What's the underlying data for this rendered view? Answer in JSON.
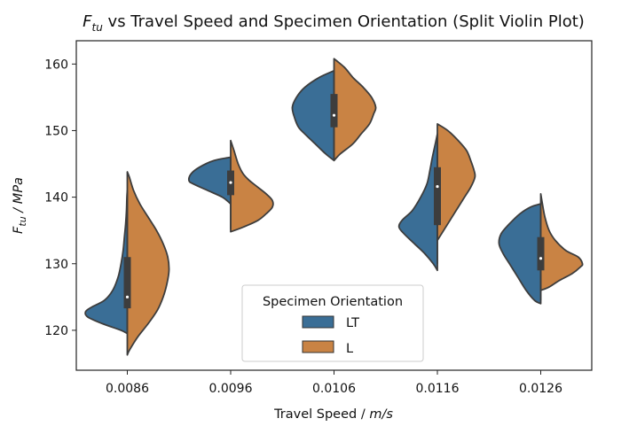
{
  "chart_data": {
    "type": "violin",
    "title_symbol": "F",
    "title_subscript": "tu",
    "title_rest": " vs Travel Speed and Specimen Orientation (Split Violin Plot)",
    "xlabel_text": "Travel Speed / ",
    "xlabel_unit": "m/s",
    "ylabel_symbol": "F",
    "ylabel_subscript": "tu",
    "ylabel_rest": " / MPa",
    "categories": [
      "0.0086",
      "0.0096",
      "0.0106",
      "0.0116",
      "0.0126"
    ],
    "ylim": [
      114,
      163.5
    ],
    "yticks": [
      120,
      130,
      140,
      150,
      160
    ],
    "legend": {
      "title": "Specimen Orientation",
      "placement": "lower center"
    },
    "series": [
      {
        "name": "LT",
        "color": "#3a6e96",
        "side": "left",
        "violins": [
          {
            "kde": [
              [
                119.5,
                0
              ],
              [
                120,
                0.15
              ],
              [
                121,
                0.6
              ],
              [
                122,
                0.95
              ],
              [
                122.8,
                1.0
              ],
              [
                123.5,
                0.85
              ],
              [
                124.5,
                0.55
              ],
              [
                126,
                0.35
              ],
              [
                128,
                0.22
              ],
              [
                130,
                0.15
              ],
              [
                132,
                0.1
              ],
              [
                134,
                0.07
              ],
              [
                136,
                0.04
              ],
              [
                138,
                0.02
              ],
              [
                140,
                0.01
              ],
              [
                141,
                0
              ]
            ]
          },
          {
            "kde": [
              [
                139,
                0
              ],
              [
                140,
                0.2
              ],
              [
                141,
                0.55
              ],
              [
                142,
                0.9
              ],
              [
                142.5,
                1.0
              ],
              [
                143.5,
                0.95
              ],
              [
                144.5,
                0.75
              ],
              [
                145.5,
                0.4
              ],
              [
                146,
                0
              ]
            ]
          },
          {
            "kde": [
              [
                145.5,
                0
              ],
              [
                146.5,
                0.2
              ],
              [
                148,
                0.45
              ],
              [
                149.5,
                0.7
              ],
              [
                150.5,
                0.85
              ],
              [
                152,
                0.95
              ],
              [
                153.5,
                1.0
              ],
              [
                155,
                0.9
              ],
              [
                156.5,
                0.7
              ],
              [
                158,
                0.35
              ],
              [
                159,
                0
              ]
            ]
          },
          {
            "kde": [
              [
                129,
                0
              ],
              [
                130,
                0.1
              ],
              [
                131.5,
                0.3
              ],
              [
                133,
                0.55
              ],
              [
                134.5,
                0.8
              ],
              [
                135.5,
                0.92
              ],
              [
                136.5,
                0.85
              ],
              [
                138,
                0.6
              ],
              [
                140,
                0.4
              ],
              [
                142,
                0.25
              ],
              [
                144,
                0.18
              ],
              [
                146,
                0.12
              ],
              [
                148,
                0.05
              ],
              [
                149.5,
                0
              ]
            ]
          },
          {
            "kde": [
              [
                124,
                0
              ],
              [
                124.5,
                0.15
              ],
              [
                126,
                0.35
              ],
              [
                128,
                0.55
              ],
              [
                130,
                0.75
              ],
              [
                131.5,
                0.9
              ],
              [
                133,
                1.0
              ],
              [
                134.5,
                0.95
              ],
              [
                136,
                0.75
              ],
              [
                137.5,
                0.5
              ],
              [
                138.5,
                0.25
              ],
              [
                139,
                0
              ]
            ]
          }
        ]
      },
      {
        "name": "L",
        "color": "#c98344",
        "side": "right",
        "violins": [
          {
            "kde": [
              [
                116.3,
                0
              ],
              [
                117,
                0.05
              ],
              [
                119,
                0.25
              ],
              [
                121,
                0.5
              ],
              [
                123,
                0.72
              ],
              [
                125,
                0.86
              ],
              [
                127,
                0.95
              ],
              [
                129,
                1.0
              ],
              [
                131,
                0.97
              ],
              [
                133,
                0.86
              ],
              [
                135,
                0.7
              ],
              [
                137,
                0.5
              ],
              [
                139,
                0.3
              ],
              [
                141,
                0.15
              ],
              [
                143,
                0.05
              ],
              [
                143.8,
                0
              ]
            ]
          },
          {
            "kde": [
              [
                134.8,
                0
              ],
              [
                135.5,
                0.3
              ],
              [
                136.5,
                0.65
              ],
              [
                137.5,
                0.85
              ],
              [
                138.5,
                1.0
              ],
              [
                139.5,
                1.0
              ],
              [
                140.5,
                0.85
              ],
              [
                141.5,
                0.65
              ],
              [
                142.5,
                0.45
              ],
              [
                143.5,
                0.3
              ],
              [
                145,
                0.18
              ],
              [
                147,
                0.08
              ],
              [
                148.5,
                0
              ]
            ]
          },
          {
            "kde": [
              [
                145.5,
                0
              ],
              [
                146.5,
                0.15
              ],
              [
                148,
                0.45
              ],
              [
                149.5,
                0.65
              ],
              [
                151,
                0.85
              ],
              [
                152.5,
                0.95
              ],
              [
                153.5,
                1.0
              ],
              [
                155,
                0.9
              ],
              [
                156.5,
                0.7
              ],
              [
                158,
                0.45
              ],
              [
                159.5,
                0.25
              ],
              [
                160.8,
                0
              ]
            ]
          },
          {
            "kde": [
              [
                133.5,
                0
              ],
              [
                134.5,
                0.1
              ],
              [
                136,
                0.25
              ],
              [
                138,
                0.45
              ],
              [
                140,
                0.65
              ],
              [
                141.5,
                0.8
              ],
              [
                143,
                0.9
              ],
              [
                144,
                0.88
              ],
              [
                145.5,
                0.8
              ],
              [
                147,
                0.7
              ],
              [
                148.5,
                0.5
              ],
              [
                150,
                0.25
              ],
              [
                151,
                0
              ]
            ]
          },
          {
            "kde": [
              [
                126,
                0
              ],
              [
                126.5,
                0.2
              ],
              [
                127.5,
                0.45
              ],
              [
                128.5,
                0.75
              ],
              [
                129.5,
                0.95
              ],
              [
                130,
                1.0
              ],
              [
                131,
                0.9
              ],
              [
                132,
                0.6
              ],
              [
                133.5,
                0.35
              ],
              [
                135,
                0.2
              ],
              [
                137,
                0.1
              ],
              [
                139,
                0.04
              ],
              [
                140.5,
                0
              ]
            ]
          }
        ]
      }
    ],
    "boxes": [
      {
        "q1": 123.3,
        "q3": 131.0,
        "median": 125.0,
        "lo": 119.6,
        "hi": 141.0
      },
      {
        "q1": 140.3,
        "q3": 144.0,
        "median": 142.2,
        "lo": 135.2,
        "hi": 146.0
      },
      {
        "q1": 150.5,
        "q3": 155.5,
        "median": 152.3,
        "lo": 145.8,
        "hi": 159.0
      },
      {
        "q1": 135.8,
        "q3": 144.5,
        "median": 141.6,
        "lo": 130.0,
        "hi": 149.5
      },
      {
        "q1": 129.0,
        "q3": 134.0,
        "median": 130.8,
        "lo": 124.5,
        "hi": 137.8
      }
    ],
    "grid": false
  }
}
